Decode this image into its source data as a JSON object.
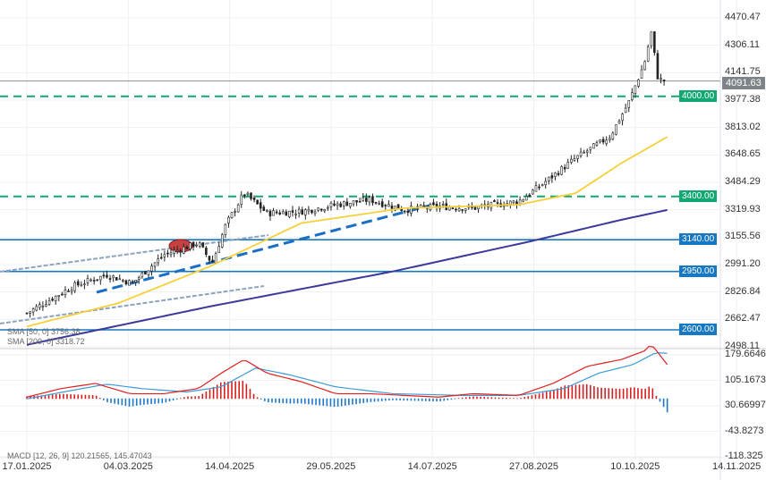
{
  "chart_data": {
    "type": "candlestick",
    "price_axis": {
      "ticks": [
        "4470.47",
        "4306.11",
        "4141.75",
        "3977.38",
        "3813.02",
        "3648.65",
        "3484.29",
        "3319.93",
        "3155.56",
        "2991.20",
        "2826.84",
        "2662.47",
        "2498.11"
      ],
      "range": [
        2498.11,
        4470.47
      ]
    },
    "macd_axis": {
      "ticks": [
        "179.6646",
        "105.1673",
        "30.66997",
        "-43.8273",
        "-118.325"
      ],
      "range": [
        -118.325,
        179.6646
      ]
    },
    "x_ticks": [
      "17.01.2025",
      "04.03.2025",
      "14.04.2025",
      "29.05.2025",
      "14.07.2025",
      "27.08.2025",
      "10.10.2025",
      "14.11.2025"
    ],
    "close_keypoints": [
      [
        0,
        2700
      ],
      [
        20,
        2860
      ],
      [
        35,
        2930
      ],
      [
        46,
        2880
      ],
      [
        60,
        3050
      ],
      [
        75,
        3120
      ],
      [
        81,
        3000
      ],
      [
        87,
        3230
      ],
      [
        95,
        3420
      ],
      [
        105,
        3300
      ],
      [
        120,
        3310
      ],
      [
        135,
        3350
      ],
      [
        150,
        3380
      ],
      [
        165,
        3320
      ],
      [
        180,
        3340
      ],
      [
        195,
        3330
      ],
      [
        215,
        3370
      ],
      [
        225,
        3470
      ],
      [
        240,
        3630
      ],
      [
        255,
        3760
      ],
      [
        263,
        3960
      ],
      [
        270,
        4200
      ],
      [
        273,
        4380
      ],
      [
        276,
        4100
      ],
      [
        280,
        4091.63
      ]
    ],
    "sma50_keypoints": [
      [
        0,
        2620
      ],
      [
        40,
        2760
      ],
      [
        80,
        2980
      ],
      [
        120,
        3240
      ],
      [
        165,
        3330
      ],
      [
        215,
        3350
      ],
      [
        240,
        3420
      ],
      [
        260,
        3600
      ],
      [
        280,
        3756.38
      ]
    ],
    "sma200_keypoints": [
      [
        0,
        2510
      ],
      [
        80,
        2740
      ],
      [
        160,
        2950
      ],
      [
        220,
        3130
      ],
      [
        260,
        3260
      ],
      [
        280,
        3318.72
      ]
    ],
    "macd_keypoints": [
      [
        0,
        30
      ],
      [
        15,
        55
      ],
      [
        30,
        70
      ],
      [
        45,
        40
      ],
      [
        60,
        40
      ],
      [
        75,
        55
      ],
      [
        85,
        100
      ],
      [
        95,
        140
      ],
      [
        105,
        100
      ],
      [
        120,
        75
      ],
      [
        135,
        40
      ],
      [
        150,
        40
      ],
      [
        165,
        35
      ],
      [
        180,
        30
      ],
      [
        195,
        40
      ],
      [
        215,
        35
      ],
      [
        230,
        70
      ],
      [
        245,
        120
      ],
      [
        260,
        140
      ],
      [
        270,
        165
      ],
      [
        273,
        185
      ],
      [
        280,
        125
      ]
    ],
    "signal_keypoints": [
      [
        0,
        25
      ],
      [
        20,
        50
      ],
      [
        35,
        68
      ],
      [
        50,
        55
      ],
      [
        70,
        45
      ],
      [
        85,
        60
      ],
      [
        100,
        115
      ],
      [
        115,
        95
      ],
      [
        135,
        60
      ],
      [
        160,
        40
      ],
      [
        190,
        35
      ],
      [
        215,
        35
      ],
      [
        235,
        55
      ],
      [
        250,
        100
      ],
      [
        265,
        125
      ],
      [
        275,
        160
      ],
      [
        280,
        158
      ]
    ],
    "horizontal_levels": [
      {
        "label": "4000.00",
        "value": 4000,
        "color": "#10a870",
        "style": "dashed"
      },
      {
        "label": "3400.00",
        "value": 3400,
        "color": "#10a870",
        "style": "dashed"
      },
      {
        "label": "3140.00",
        "value": 3140,
        "color": "#1678c2",
        "style": "solid"
      },
      {
        "label": "2950.00",
        "value": 2950,
        "color": "#1678c2",
        "style": "solid"
      },
      {
        "label": "2600.00",
        "value": 2600,
        "color": "#1678c2",
        "style": "solid"
      }
    ],
    "last_price": "4091.63"
  },
  "legend": {
    "sma50": "SMA [50, 0] 3756.38",
    "sma200": "SMA [200, 0] 3318.72",
    "macd": "MACD [12, 26, 9] 120.21565,  145.47043"
  },
  "colors": {
    "up": "#222",
    "sma50": "#f5d038",
    "sma200": "#3b3a9c",
    "macd": "#e02020",
    "signal": "#3d9ad8"
  }
}
